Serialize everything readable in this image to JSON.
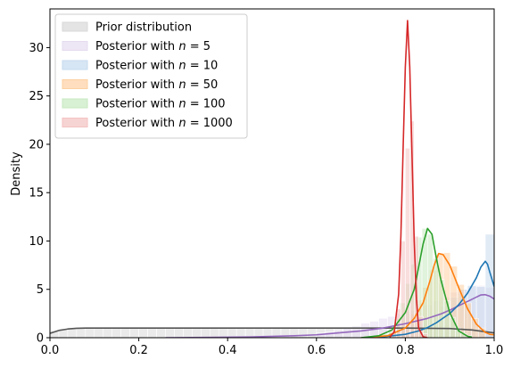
{
  "chart_data": {
    "type": "area",
    "title": "",
    "xlabel": "",
    "ylabel": "Density",
    "xlim": [
      0,
      1
    ],
    "ylim": [
      0,
      34
    ],
    "xticks": [
      0.0,
      0.2,
      0.4,
      0.6,
      0.8,
      1.0
    ],
    "xtick_labels": [
      "0.0",
      "0.2",
      "0.4",
      "0.6",
      "0.8",
      "1.0"
    ],
    "yticks": [
      0,
      5,
      10,
      15,
      20,
      25,
      30
    ],
    "ytick_labels": [
      "0",
      "5",
      "10",
      "15",
      "20",
      "25",
      "30"
    ],
    "grid": false,
    "legend_position": "top-left",
    "series": [
      {
        "name": "Prior distribution",
        "color": "#555555",
        "fill": "#d9d9d9",
        "hist_bins": [
          0.0,
          1.0,
          50
        ],
        "hist_values": [
          0.7,
          0.95,
          1.0,
          0.95,
          1.0,
          0.95,
          1.0,
          0.95,
          1.0,
          0.95,
          1.0,
          0.95,
          1.0,
          0.95,
          1.0,
          0.95,
          1.0,
          0.95,
          1.0,
          0.95,
          1.0,
          0.95,
          1.0,
          0.95,
          1.0,
          0.95,
          1.0,
          0.95,
          1.0,
          0.95,
          1.0,
          0.95,
          1.0,
          0.95,
          1.0,
          0.95,
          1.0,
          0.95,
          1.0,
          0.95,
          1.0,
          0.95,
          1.0,
          0.95,
          1.0,
          0.95,
          1.0,
          0.95,
          1.0,
          0.9
        ],
        "kde_x": [
          0.0,
          0.02,
          0.04,
          0.06,
          0.08,
          0.1,
          0.2,
          0.3,
          0.4,
          0.5,
          0.6,
          0.7,
          0.8,
          0.9,
          0.95,
          0.98,
          1.0
        ],
        "kde_y": [
          0.45,
          0.75,
          0.9,
          0.97,
          1.0,
          1.0,
          1.0,
          1.0,
          1.0,
          1.0,
          1.0,
          1.0,
          1.0,
          0.95,
          0.8,
          0.62,
          0.5
        ]
      },
      {
        "name": "Posterior with n = 5",
        "label_prefix": "Posterior with ",
        "label_var": "n",
        "label_suffix": " = 5",
        "color": "#9467bd",
        "fill": "#e5dcf0",
        "hist_bins": [
          0.6,
          1.0,
          20
        ],
        "hist_values": [
          0.5,
          0.6,
          0.8,
          1.0,
          1.2,
          1.5,
          1.7,
          2.0,
          2.2,
          2.5,
          2.8,
          3.1,
          3.4,
          3.8,
          4.2,
          4.7,
          5.0,
          5.3,
          5.4,
          5.2
        ],
        "kde_x": [
          0.26,
          0.35,
          0.45,
          0.55,
          0.6,
          0.65,
          0.7,
          0.75,
          0.8,
          0.85,
          0.88,
          0.9,
          0.92,
          0.94,
          0.96,
          0.97,
          0.98,
          0.99,
          1.0
        ],
        "kde_y": [
          0.0,
          0.03,
          0.08,
          0.2,
          0.3,
          0.5,
          0.7,
          1.0,
          1.45,
          2.0,
          2.45,
          2.85,
          3.3,
          3.75,
          4.2,
          4.42,
          4.45,
          4.3,
          4.0
        ]
      },
      {
        "name": "Posterior with n = 10",
        "label_prefix": "Posterior with ",
        "label_var": "n",
        "label_suffix": " = 10",
        "color": "#1f77b4",
        "fill": "#c6dbef",
        "hist_bins": [
          0.72,
          1.0,
          14
        ],
        "hist_values": [
          0.2,
          0.3,
          0.5,
          0.8,
          1.1,
          1.5,
          2.0,
          2.6,
          3.3,
          4.2,
          5.0,
          5.4,
          5.3,
          10.7
        ],
        "kde_x": [
          0.7,
          0.75,
          0.8,
          0.83,
          0.85,
          0.87,
          0.9,
          0.92,
          0.94,
          0.96,
          0.97,
          0.98,
          0.985,
          0.99,
          1.0
        ],
        "kde_y": [
          0.0,
          0.1,
          0.35,
          0.7,
          1.05,
          1.55,
          2.5,
          3.4,
          4.6,
          6.2,
          7.3,
          7.9,
          7.6,
          6.8,
          5.3
        ]
      },
      {
        "name": "Posterior with n = 50",
        "label_prefix": "Posterior with ",
        "label_var": "n",
        "label_suffix": " = 50",
        "color": "#ff7f0e",
        "fill": "#fdd0a2",
        "hist_bins": [
          0.76,
          0.98,
          14
        ],
        "hist_values": [
          0.3,
          0.7,
          1.5,
          2.5,
          3.9,
          5.2,
          7.0,
          8.6,
          8.8,
          7.4,
          5.5,
          3.6,
          2.0,
          1.0
        ],
        "kde_x": [
          0.7,
          0.76,
          0.8,
          0.82,
          0.84,
          0.855,
          0.865,
          0.875,
          0.885,
          0.9,
          0.92,
          0.94,
          0.96,
          0.98,
          0.99,
          1.0
        ],
        "kde_y": [
          0.0,
          0.2,
          1.0,
          2.0,
          3.6,
          5.8,
          7.5,
          8.7,
          8.6,
          7.5,
          5.2,
          3.0,
          1.4,
          0.55,
          0.35,
          0.3
        ]
      },
      {
        "name": "Posterior with n = 100",
        "label_prefix": "Posterior with ",
        "label_var": "n",
        "label_suffix": " = 100",
        "color": "#2ca02c",
        "fill": "#c7e9c0",
        "hist_bins": [
          0.75,
          0.95,
          16
        ],
        "hist_values": [
          0.4,
          0.9,
          2.0,
          3.6,
          5.6,
          7.6,
          10.4,
          11.3,
          10.7,
          8.2,
          6.0,
          3.8,
          2.1,
          1.0,
          0.4,
          0.2
        ],
        "kde_x": [
          0.7,
          0.74,
          0.77,
          0.8,
          0.82,
          0.83,
          0.84,
          0.85,
          0.86,
          0.87,
          0.88,
          0.9,
          0.92,
          0.94,
          0.95
        ],
        "kde_y": [
          0.0,
          0.2,
          0.8,
          2.6,
          5.0,
          7.3,
          9.7,
          11.3,
          10.7,
          8.2,
          6.0,
          2.6,
          0.7,
          0.15,
          0.05
        ]
      },
      {
        "name": "Posterior with n = 1000",
        "label_prefix": "Posterior with ",
        "label_var": "n",
        "label_suffix": " = 1000",
        "color": "#d62728",
        "fill": "#f4c2c2",
        "hist_bins": [
          0.77,
          0.85,
          8
        ],
        "hist_values": [
          0.8,
          3.0,
          10.0,
          19.6,
          22.4,
          10.5,
          2.2,
          0.4
        ],
        "kde_x": [
          0.765,
          0.775,
          0.785,
          0.79,
          0.795,
          0.8,
          0.805,
          0.81,
          0.815,
          0.82,
          0.825,
          0.83,
          0.84,
          0.85
        ],
        "kde_y": [
          0.05,
          0.6,
          4.5,
          10.5,
          19.5,
          28.0,
          32.8,
          28.0,
          19.0,
          10.0,
          4.0,
          1.0,
          0.1,
          0.0
        ]
      }
    ]
  }
}
